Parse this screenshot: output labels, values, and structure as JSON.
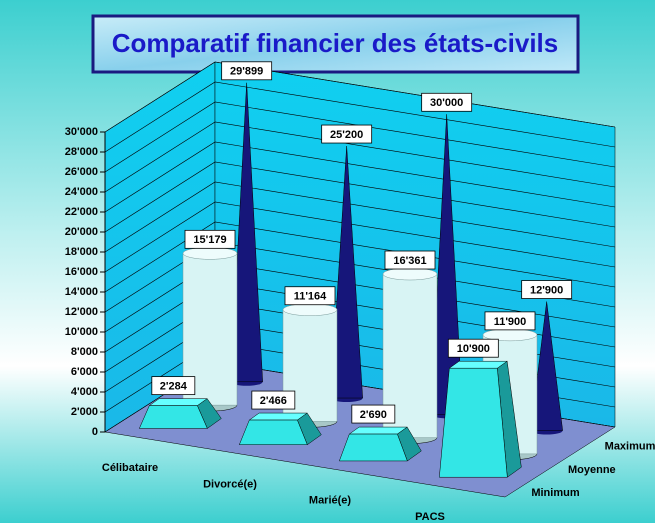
{
  "chart_data": {
    "type": "bar3d",
    "title": "Comparatif financier des états-civils",
    "categories": [
      "Célibataire",
      "Divorcé(e)",
      "Marié(e)",
      "PACS"
    ],
    "series": [
      {
        "name": "Minimum",
        "color": "#33e6e6",
        "values": [
          2284,
          2466,
          2690,
          10900
        ],
        "value_labels": [
          "2'284",
          "2'466",
          "2'690",
          "10'900"
        ]
      },
      {
        "name": "Moyenne",
        "color": "#d8f4f4",
        "values": [
          15179,
          11164,
          16361,
          11900
        ],
        "value_labels": [
          "15'179",
          "11'164",
          "16'361",
          "11'900"
        ]
      },
      {
        "name": "Maximum",
        "color": "#16167a",
        "values": [
          29899,
          25200,
          30000,
          12900
        ],
        "value_labels": [
          "29'899",
          "25'200",
          "30'000",
          "12'900"
        ]
      }
    ],
    "ylim": [
      0,
      30000
    ],
    "yticks": [
      0,
      {
        "value": 2000,
        "label": "2'000"
      },
      {
        "value": 4000,
        "label": "4'000"
      },
      {
        "value": 6000,
        "label": "6'000"
      },
      {
        "value": 8000,
        "label": "8'000"
      },
      {
        "value": 10000,
        "label": "10'000"
      },
      {
        "value": 12000,
        "label": "12'000"
      },
      {
        "value": 14000,
        "label": "14'000"
      },
      {
        "value": 16000,
        "label": "16'000"
      },
      {
        "value": 18000,
        "label": "18'000"
      },
      {
        "value": 20000,
        "label": "20'000"
      },
      {
        "value": 22000,
        "label": "22'000"
      },
      {
        "value": 24000,
        "label": "24'000"
      },
      {
        "value": 26000,
        "label": "26'000"
      },
      {
        "value": 28000,
        "label": "28'000"
      },
      {
        "value": 30000,
        "label": "30'000"
      }
    ],
    "grid": true
  }
}
